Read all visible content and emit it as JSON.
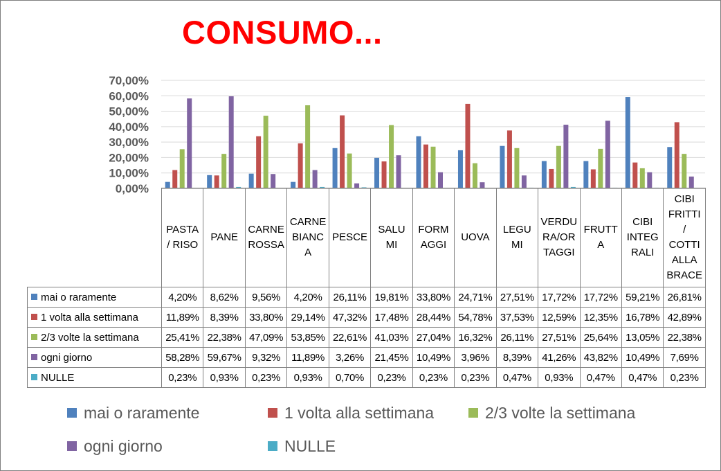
{
  "chart_data": {
    "type": "bar",
    "title": "CONSUMO...",
    "xlabel": "",
    "ylabel": "",
    "ylim": [
      0,
      70
    ],
    "yticks": [
      "0,00%",
      "10,00%",
      "20,00%",
      "30,00%",
      "40,00%",
      "50,00%",
      "60,00%",
      "70,00%"
    ],
    "grid": true,
    "legend": "bottom",
    "categories": [
      "PASTA\n/  RISO",
      "PANE",
      "CARNE\nROSSA",
      "CARNE\nBIANC\nA",
      "PESCE",
      "SALU\nMI",
      "FORM\nAGGI",
      "UOVA",
      "LEGU\nMI",
      "VERDU\nRA/OR\nTAGGI",
      "FRUTT\nA",
      "CIBI\nINTEG\nRALI",
      "CIBI\nFRITTI\n/\nCOTTI\nALLA\nBRACE"
    ],
    "series": [
      {
        "name": "mai o raramente",
        "color": "#4f81bd",
        "values": [
          4.2,
          8.62,
          9.56,
          4.2,
          26.11,
          19.81,
          33.8,
          24.71,
          27.51,
          17.72,
          17.72,
          59.21,
          26.81
        ],
        "labels": [
          "4,20%",
          "8,62%",
          "9,56%",
          "4,20%",
          "26,11%",
          "19,81%",
          "33,80%",
          "24,71%",
          "27,51%",
          "17,72%",
          "17,72%",
          "59,21%",
          "26,81%"
        ]
      },
      {
        "name": "1 volta alla settimana",
        "color": "#c0504d",
        "values": [
          11.89,
          8.39,
          33.8,
          29.14,
          47.32,
          17.48,
          28.44,
          54.78,
          37.53,
          12.59,
          12.35,
          16.78,
          42.89
        ],
        "labels": [
          "11,89%",
          "8,39%",
          "33,80%",
          "29,14%",
          "47,32%",
          "17,48%",
          "28,44%",
          "54,78%",
          "37,53%",
          "12,59%",
          "12,35%",
          "16,78%",
          "42,89%"
        ]
      },
      {
        "name": "2/3 volte la settimana",
        "color": "#9bbb59",
        "values": [
          25.41,
          22.38,
          47.09,
          53.85,
          22.61,
          41.03,
          27.04,
          16.32,
          26.11,
          27.51,
          25.64,
          13.05,
          22.38
        ],
        "labels": [
          "25,41%",
          "22,38%",
          "47,09%",
          "53,85%",
          "22,61%",
          "41,03%",
          "27,04%",
          "16,32%",
          "26,11%",
          "27,51%",
          "25,64%",
          "13,05%",
          "22,38%"
        ]
      },
      {
        "name": "ogni giorno",
        "color": "#8064a2",
        "values": [
          58.28,
          59.67,
          9.32,
          11.89,
          3.26,
          21.45,
          10.49,
          3.96,
          8.39,
          41.26,
          43.82,
          10.49,
          7.69
        ],
        "labels": [
          "58,28%",
          "59,67%",
          "9,32%",
          "11,89%",
          "3,26%",
          "21,45%",
          "10,49%",
          "3,96%",
          "8,39%",
          "41,26%",
          "43,82%",
          "10,49%",
          "7,69%"
        ]
      },
      {
        "name": "NULLE",
        "color": "#4bacc6",
        "values": [
          0.23,
          0.93,
          0.23,
          0.93,
          0.7,
          0.23,
          0.23,
          0.23,
          0.47,
          0.93,
          0.47,
          0.47,
          0.23
        ],
        "labels": [
          "0,23%",
          "0,93%",
          "0,23%",
          "0,93%",
          "0,70%",
          "0,23%",
          "0,23%",
          "0,23%",
          "0,47%",
          "0,93%",
          "0,47%",
          "0,47%",
          "0,23%"
        ]
      }
    ]
  }
}
